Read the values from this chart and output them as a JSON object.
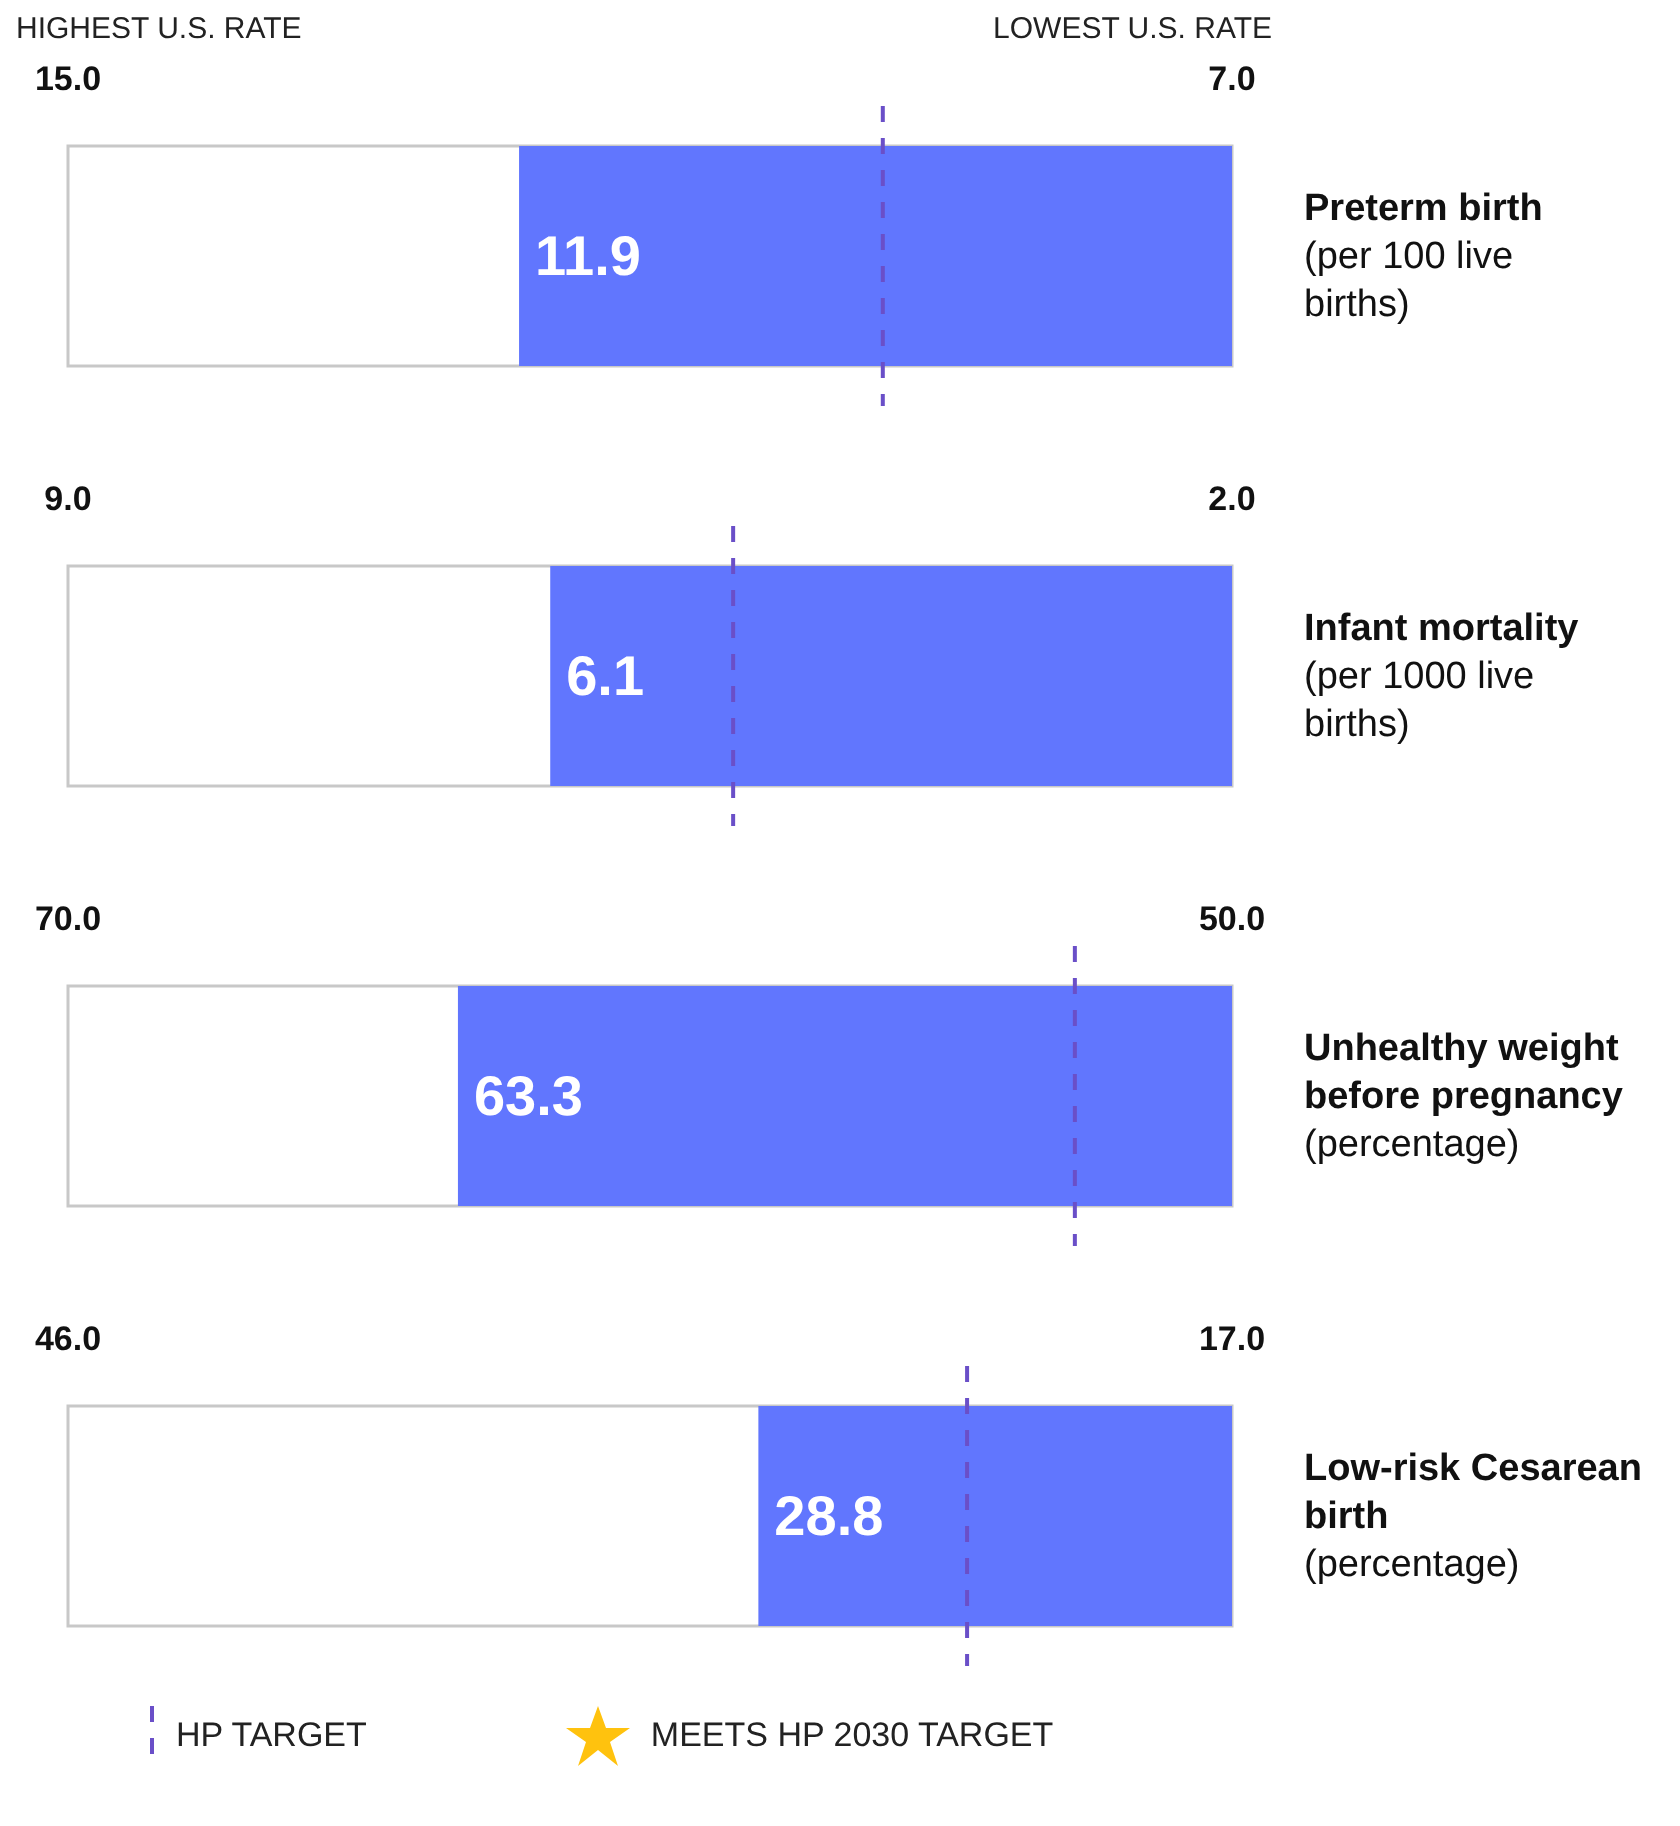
{
  "chart_data": [
    {
      "type": "bar",
      "orientation": "horizontal",
      "ylabel": "(per 100 live births)",
      "categories": [
        "Preterm birth"
      ],
      "base": [
        7.0
      ],
      "values": [
        4.9
      ],
      "value_labels": [
        "11.9"
      ],
      "color": "#6176fe",
      "xlim": [
        15.0,
        7.0
      ],
      "xticks": [
        {
          "value": 15,
          "label": "15.0"
        },
        {
          "value": 7,
          "label": "7.0"
        }
      ],
      "ref_lines": [
        {
          "axis": "x",
          "value": 9.4,
          "color": "#6a4fc8",
          "line_style": "dashed"
        }
      ],
      "annotations": [
        "HIGHEST U.S. RATE",
        "LOWEST U.S. RATE"
      ]
    },
    {
      "type": "bar",
      "orientation": "horizontal",
      "ylabel": "(per 1000 live births)",
      "categories": [
        "Infant mortality"
      ],
      "base": [
        2.0
      ],
      "values": [
        4.1
      ],
      "value_labels": [
        "6.1"
      ],
      "color": "#6176fe",
      "xlim": [
        9.0,
        2.0
      ],
      "xticks": [
        {
          "value": 9,
          "label": "9.0"
        },
        {
          "value": 2,
          "label": "2.0"
        }
      ],
      "ref_lines": [
        {
          "axis": "x",
          "value": 5.0,
          "color": "#6a4fc8",
          "line_style": "dashed"
        }
      ]
    },
    {
      "type": "bar",
      "orientation": "horizontal",
      "ylabel": "(percentage)",
      "categories": [
        "Unhealthy weight before pregnancy"
      ],
      "base": [
        50.0
      ],
      "values": [
        13.3
      ],
      "value_labels": [
        "63.3"
      ],
      "color": "#6176fe",
      "xlim": [
        70.0,
        50.0
      ],
      "xticks": [
        {
          "value": 70,
          "label": "70.0"
        },
        {
          "value": 50,
          "label": "50.0"
        }
      ],
      "ref_lines": [
        {
          "axis": "x",
          "value": 52.7,
          "color": "#6a4fc8",
          "line_style": "dashed"
        }
      ]
    },
    {
      "type": "bar",
      "orientation": "horizontal",
      "ylabel": "(percentage)",
      "categories": [
        "Low-risk Cesarean birth"
      ],
      "base": [
        17.0
      ],
      "values": [
        11.8
      ],
      "value_labels": [
        "28.8"
      ],
      "color": "#6176fe",
      "xlim": [
        46.0,
        17.0
      ],
      "xticks": [
        {
          "value": 46,
          "label": "46.0"
        },
        {
          "value": 17,
          "label": "17.0"
        }
      ],
      "ref_lines": [
        {
          "axis": "x",
          "value": 23.6,
          "color": "#6a4fc8",
          "line_style": "dashed"
        }
      ],
      "annotations": [
        "HP TARGET",
        "MEETS HP 2030 TARGET"
      ]
    }
  ]
}
